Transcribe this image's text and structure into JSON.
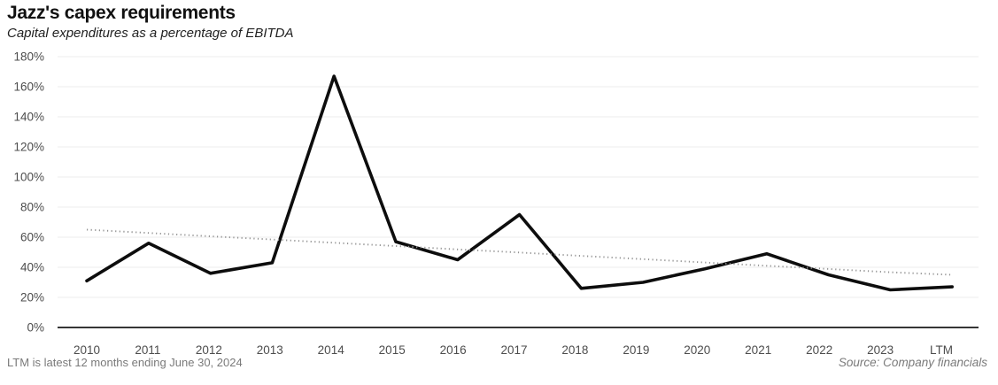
{
  "header": {
    "title": "Jazz's capex requirements",
    "subtitle": "Capital expenditures as a percentage of EBITDA"
  },
  "footer": {
    "note": "LTM is latest 12 months ending June 30, 2024",
    "source": "Source: Company financials"
  },
  "colors": {
    "data_line": "#0d0d0d",
    "trend_line": "#929292",
    "gridline": "#ececec",
    "axis_line": "#1a1a1a",
    "tick_text": "#4d4d4d",
    "footnote_text": "#7a7a7a"
  },
  "chart_data": {
    "type": "line",
    "title": "Jazz's capex requirements",
    "subtitle": "Capital expenditures as a percentage of EBITDA",
    "categories": [
      "2010",
      "2011",
      "2012",
      "2013",
      "2014",
      "2015",
      "2016",
      "2017",
      "2018",
      "2019",
      "2020",
      "2021",
      "2022",
      "2023",
      "LTM"
    ],
    "series": [
      {
        "name": "Capex as % of EBITDA",
        "style": "solid",
        "color": "#0d0d0d",
        "values": [
          31,
          56,
          36,
          43,
          167,
          57,
          45,
          75,
          26,
          30,
          39,
          49,
          35,
          25,
          27
        ]
      },
      {
        "name": "Trend",
        "style": "dotted",
        "color": "#929292",
        "values": [
          65,
          62.8,
          60.6,
          58.5,
          56.3,
          54.1,
          51.9,
          49.8,
          47.6,
          45.4,
          43.2,
          41.0,
          38.9,
          36.7,
          35
        ]
      }
    ],
    "xlabel": "",
    "ylabel": "",
    "ylim": [
      0,
      180
    ],
    "ytick_step": 20,
    "ytick_labels": [
      "0%",
      "20%",
      "40%",
      "60%",
      "80%",
      "100%",
      "120%",
      "140%",
      "160%",
      "180%"
    ],
    "grid": "horizontal",
    "legend": "none"
  }
}
